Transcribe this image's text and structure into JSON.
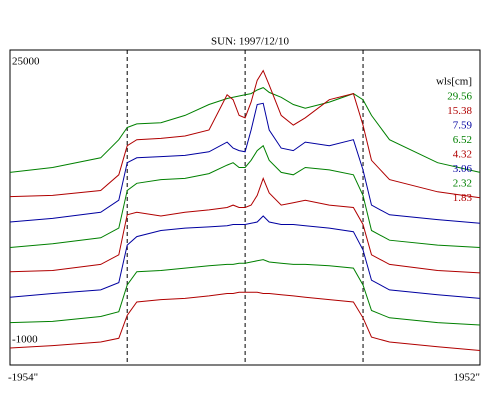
{
  "chart_data": {
    "type": "line",
    "title": "SUN: 1997/12/10",
    "legend_title": "wls[cm]",
    "legend": "right",
    "xlim": [
      -1954,
      1952
    ],
    "ylim": [
      -1000,
      25000
    ],
    "xticks": [
      {
        "value": -1954,
        "label": "-1954\""
      },
      {
        "value": 1952,
        "label": "1952\""
      }
    ],
    "yticks": [
      -1000,
      25000
    ],
    "vlines": [
      -980,
      0,
      980
    ],
    "x": [
      -1954,
      -1600,
      -1200,
      -1050,
      -980,
      -900,
      -700,
      -500,
      -300,
      -150,
      -100,
      -50,
      0,
      50,
      100,
      150,
      200,
      300,
      400,
      500,
      700,
      900,
      980,
      1050,
      1200,
      1600,
      1952
    ],
    "series": [
      {
        "name": "29.56",
        "color": "#008000",
        "values": [
          14900,
          15300,
          16100,
          17600,
          18600,
          18900,
          19000,
          19600,
          20500,
          21000,
          21100,
          21200,
          21300,
          21400,
          21700,
          21900,
          21500,
          21100,
          20500,
          20200,
          20700,
          21400,
          20900,
          19600,
          17600,
          15700,
          14900
        ]
      },
      {
        "name": "15.38",
        "color": "#b00000",
        "values": [
          12900,
          13000,
          13400,
          14700,
          17100,
          17600,
          17700,
          17900,
          18400,
          21300,
          20900,
          19600,
          19400,
          20700,
          22500,
          23300,
          22100,
          19600,
          18800,
          19400,
          20900,
          21400,
          18800,
          15900,
          14300,
          13300,
          12800
        ]
      },
      {
        "name": "7.59",
        "color": "#0000a0",
        "values": [
          10800,
          11100,
          11600,
          12600,
          15700,
          16100,
          16200,
          16300,
          16600,
          17400,
          16900,
          16700,
          16600,
          18400,
          20500,
          20600,
          18400,
          16900,
          16700,
          17400,
          17100,
          17600,
          15100,
          12200,
          11400,
          11000,
          10700
        ]
      },
      {
        "name": "6.52",
        "color": "#008000",
        "values": [
          8700,
          9000,
          9500,
          10300,
          13400,
          14000,
          14300,
          14400,
          14800,
          15500,
          15700,
          15300,
          15300,
          15900,
          16700,
          17100,
          15900,
          14900,
          14700,
          15300,
          15100,
          14700,
          13000,
          10100,
          9300,
          8900,
          8700
        ]
      },
      {
        "name": "4.32",
        "color": "#b00000",
        "values": [
          6700,
          6800,
          7300,
          8100,
          11400,
          11600,
          11300,
          11600,
          11800,
          12000,
          12200,
          12000,
          12000,
          12200,
          13000,
          14400,
          13200,
          12200,
          12400,
          12600,
          12200,
          12000,
          10600,
          8100,
          7300,
          6800,
          6600
        ]
      },
      {
        "name": "3.06",
        "color": "#0000a0",
        "values": [
          4600,
          4900,
          5200,
          5800,
          8900,
          9600,
          10100,
          10300,
          10400,
          10500,
          10600,
          10600,
          10600,
          10700,
          10800,
          11300,
          10800,
          10600,
          10600,
          10500,
          10300,
          10000,
          8500,
          6000,
          5200,
          4800,
          4500
        ]
      },
      {
        "name": "2.32",
        "color": "#008000",
        "values": [
          2500,
          2600,
          3000,
          3400,
          5600,
          6700,
          6800,
          7000,
          7200,
          7300,
          7300,
          7400,
          7400,
          7500,
          7600,
          7700,
          7500,
          7400,
          7300,
          7300,
          7200,
          7000,
          5600,
          3500,
          2900,
          2500,
          2300
        ]
      },
      {
        "name": "1.83",
        "color": "#b00000",
        "values": [
          400,
          600,
          900,
          1200,
          3100,
          4200,
          4400,
          4500,
          4700,
          4900,
          4900,
          5000,
          5000,
          5000,
          5000,
          4900,
          4900,
          4800,
          4700,
          4600,
          4400,
          4200,
          2900,
          1300,
          900,
          500,
          200
        ]
      }
    ]
  }
}
